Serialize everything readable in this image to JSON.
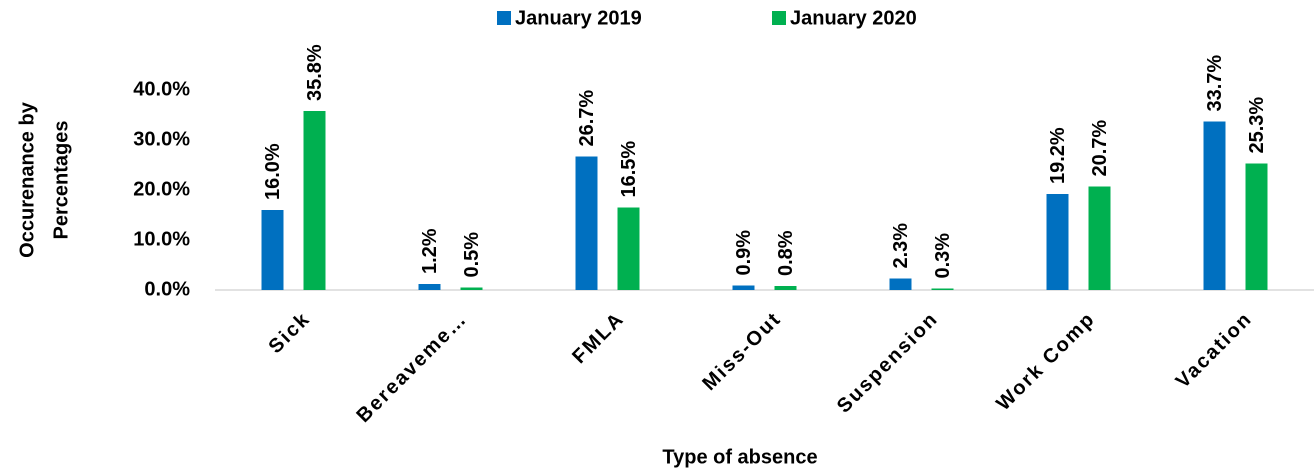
{
  "chart_data": {
    "type": "bar",
    "categories": [
      "Sick",
      "Bereaveme…",
      "FMLA",
      "Miss-Out",
      "Suspension",
      "Work Comp",
      "Vacation"
    ],
    "series": [
      {
        "name": "January 2019",
        "color": "#0070c0",
        "values": [
          16.0,
          1.2,
          26.7,
          0.9,
          2.3,
          19.2,
          33.7
        ],
        "value_labels": [
          "16.0%",
          "1.2%",
          "26.7%",
          "0.9%",
          "2.3%",
          "19.2%",
          "33.7%"
        ]
      },
      {
        "name": "January 2020",
        "color": "#00b050",
        "values": [
          35.8,
          0.5,
          16.5,
          0.8,
          0.3,
          20.7,
          25.3
        ],
        "value_labels": [
          "35.8%",
          "0.5%",
          "16.5%",
          "0.8%",
          "0.3%",
          "20.7%",
          "25.3%"
        ]
      }
    ],
    "ylim": [
      0,
      40
    ],
    "yticks": [
      {
        "value": 0,
        "label": "0.0%"
      },
      {
        "value": 10,
        "label": "10.0%"
      },
      {
        "value": 20,
        "label": "20.0%"
      },
      {
        "value": 30,
        "label": "30.0%"
      },
      {
        "value": 40,
        "label": "40.0%"
      }
    ],
    "y_label": [
      "Occurenance by",
      "Percentages"
    ],
    "x_label": "Type of absence",
    "legend": "top"
  }
}
